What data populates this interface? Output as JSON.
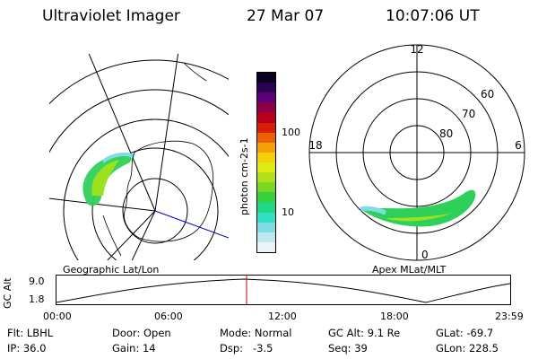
{
  "header": {
    "title": "Ultraviolet Imager",
    "date": "27 Mar 07",
    "time": "10:07:06 UT"
  },
  "geo_panel": {
    "label": "Geographic Lat/Lon"
  },
  "apex_panel": {
    "label": "Apex MLat/MLT",
    "mlt_labels": [
      "12",
      "18",
      "6",
      "0"
    ],
    "mlat_labels": [
      "60",
      "70",
      "80"
    ]
  },
  "colorbar": {
    "unit_label": "photon cm-2s-1",
    "tick_labels": [
      "100",
      "10"
    ],
    "scale": "log",
    "colors": [
      "#e8f4f6",
      "#bfe8ee",
      "#7fdce6",
      "#30e0c8",
      "#1ed884",
      "#36d23c",
      "#7ad822",
      "#b4e01a",
      "#e2ea14",
      "#f4d00c",
      "#f4a008",
      "#ee6006",
      "#d81e06",
      "#b8001c",
      "#8c004a",
      "#5c007a",
      "#2a0050",
      "#0a0020"
    ]
  },
  "altitude_plot": {
    "ylabel": "GC Alt",
    "y_ticks": [
      "9.0",
      "1.8"
    ],
    "x_ticks": [
      "00:00",
      "06:00",
      "12:00",
      "18:00",
      "23:59"
    ],
    "current_time_marker": "10:07:06",
    "curve_color": "#000000",
    "marker_color": "#cc0000"
  },
  "info": {
    "flt": "Flt: LBHL",
    "ip": "IP: 36.0",
    "door": "Door: Open",
    "gain": "Gain: 14",
    "mode": "Mode: Normal",
    "dsp": "Dsp:   -3.5",
    "gc_alt": "GC Alt: 9.1 Re",
    "seq": "Seq: 39",
    "glat": "GLat: -69.7",
    "glon": "GLon: 228.5"
  }
}
